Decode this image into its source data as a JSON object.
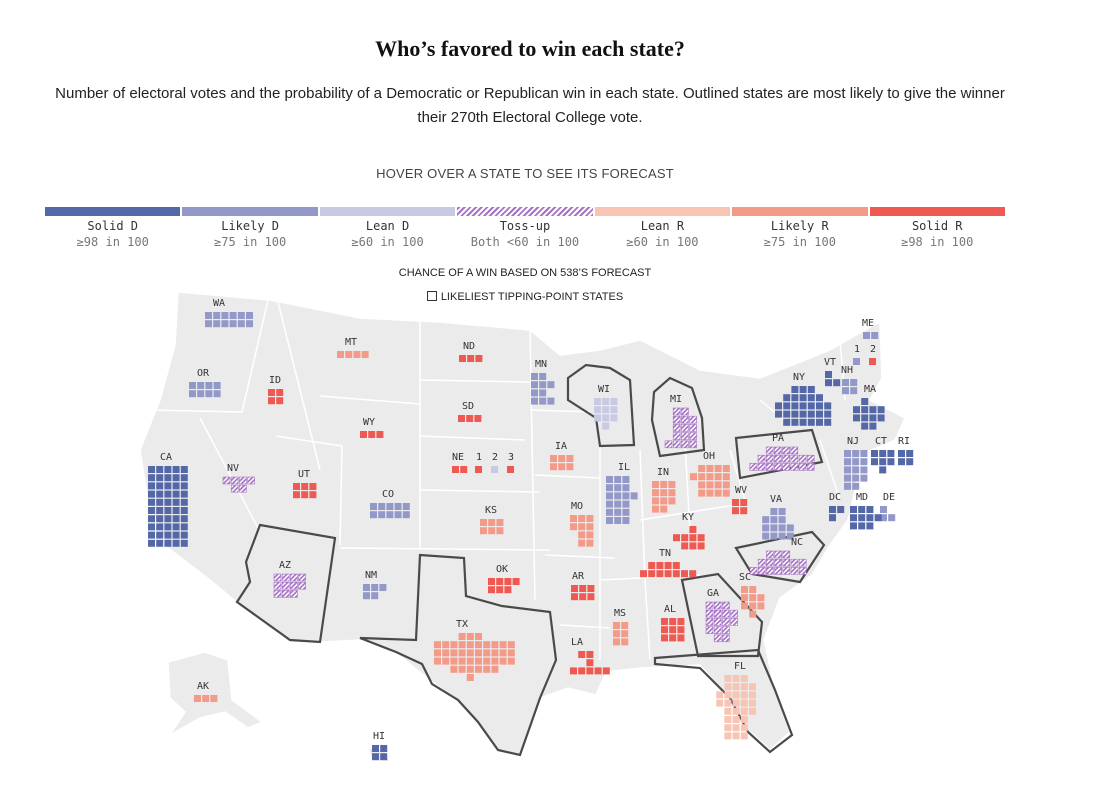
{
  "header": {
    "title": "Who’s favored to win each state?",
    "subtitle": "Number of electoral votes and the probability of a Democratic or Republican win in each state. Outlined states are most likely to give the winner their 270th Electoral College vote."
  },
  "hover_hint": "HOVER OVER A STATE TO SEE ITS FORECAST",
  "legend": [
    {
      "key": "sd",
      "name": "Solid D",
      "range": "≥98 in 100",
      "color": "#5468a8"
    },
    {
      "key": "ld",
      "name": "Likely D",
      "range": "≥75 in 100",
      "color": "#9298c8"
    },
    {
      "key": "nd",
      "name": "Lean D",
      "range": "≥60 in 100",
      "color": "#c8c9e2"
    },
    {
      "key": "tu",
      "name": "Toss-up",
      "range": "Both <60 in 100",
      "color": "#a774c4"
    },
    {
      "key": "nr",
      "name": "Lean R",
      "range": "≥60 in 100",
      "color": "#f8c4b4"
    },
    {
      "key": "lr",
      "name": "Likely R",
      "range": "≥75 in 100",
      "color": "#f39a89"
    },
    {
      "key": "sr",
      "name": "Solid R",
      "range": "≥98 in 100",
      "color": "#ee5a52"
    }
  ],
  "chance_note": "CHANCE OF A WIN BASED ON 538’S FORECAST",
  "tipping_note": "LIKELIEST TIPPING-POINT STATES",
  "map": {
    "states": [
      {
        "abbr": "WA",
        "ev": 12,
        "rating": "ld"
      },
      {
        "abbr": "OR",
        "ev": 8,
        "rating": "ld"
      },
      {
        "abbr": "CA",
        "ev": 54,
        "rating": "sd"
      },
      {
        "abbr": "NV",
        "ev": 6,
        "rating": "tu"
      },
      {
        "abbr": "ID",
        "ev": 4,
        "rating": "sr"
      },
      {
        "abbr": "MT",
        "ev": 4,
        "rating": "lr"
      },
      {
        "abbr": "WY",
        "ev": 3,
        "rating": "sr"
      },
      {
        "abbr": "UT",
        "ev": 6,
        "rating": "sr"
      },
      {
        "abbr": "CO",
        "ev": 10,
        "rating": "ld"
      },
      {
        "abbr": "AZ",
        "ev": 11,
        "rating": "tu",
        "tipping": true
      },
      {
        "abbr": "NM",
        "ev": 5,
        "rating": "ld"
      },
      {
        "abbr": "ND",
        "ev": 3,
        "rating": "sr"
      },
      {
        "abbr": "SD",
        "ev": 3,
        "rating": "sr"
      },
      {
        "abbr": "NE",
        "ev": 2,
        "rating": "sr"
      },
      {
        "abbr": "1",
        "ev": 1,
        "rating": "sr"
      },
      {
        "abbr": "2",
        "ev": 1,
        "rating": "nd"
      },
      {
        "abbr": "3",
        "ev": 1,
        "rating": "sr"
      },
      {
        "abbr": "KS",
        "ev": 6,
        "rating": "lr"
      },
      {
        "abbr": "OK",
        "ev": 7,
        "rating": "sr"
      },
      {
        "abbr": "TX",
        "ev": 40,
        "rating": "lr",
        "tipping": true
      },
      {
        "abbr": "MN",
        "ev": 10,
        "rating": "ld"
      },
      {
        "abbr": "IA",
        "ev": 6,
        "rating": "lr"
      },
      {
        "abbr": "MO",
        "ev": 10,
        "rating": "lr"
      },
      {
        "abbr": "AR",
        "ev": 6,
        "rating": "sr"
      },
      {
        "abbr": "LA",
        "ev": 8,
        "rating": "sr"
      },
      {
        "abbr": "WI",
        "ev": 10,
        "rating": "nd",
        "tipping": true
      },
      {
        "abbr": "IL",
        "ev": 19,
        "rating": "ld"
      },
      {
        "abbr": "MI",
        "ev": 15,
        "rating": "tu",
        "tipping": true
      },
      {
        "abbr": "IN",
        "ev": 11,
        "rating": "lr"
      },
      {
        "abbr": "OH",
        "ev": 17,
        "rating": "lr"
      },
      {
        "abbr": "KY",
        "ev": 8,
        "rating": "sr"
      },
      {
        "abbr": "TN",
        "ev": 11,
        "rating": "sr"
      },
      {
        "abbr": "MS",
        "ev": 6,
        "rating": "lr"
      },
      {
        "abbr": "AL",
        "ev": 9,
        "rating": "sr"
      },
      {
        "abbr": "GA",
        "ev": 16,
        "rating": "tu",
        "tipping": true
      },
      {
        "abbr": "FL",
        "ev": 30,
        "rating": "nr",
        "tipping": true
      },
      {
        "abbr": "SC",
        "ev": 9,
        "rating": "lr"
      },
      {
        "abbr": "NC",
        "ev": 16,
        "rating": "tu",
        "tipping": true
      },
      {
        "abbr": "VA",
        "ev": 13,
        "rating": "ld"
      },
      {
        "abbr": "WV",
        "ev": 4,
        "rating": "sr"
      },
      {
        "abbr": "PA",
        "ev": 19,
        "rating": "tu",
        "tipping": true
      },
      {
        "abbr": "NY",
        "ev": 28,
        "rating": "sd"
      },
      {
        "abbr": "VT",
        "ev": 3,
        "rating": "sd"
      },
      {
        "abbr": "NH",
        "ev": 4,
        "rating": "ld"
      },
      {
        "abbr": "ME",
        "ev": 2,
        "rating": "ld"
      },
      {
        "abbr": "1",
        "ev": 1,
        "rating": "ld"
      },
      {
        "abbr": "2",
        "ev": 1,
        "rating": "sr"
      },
      {
        "abbr": "MA",
        "ev": 11,
        "rating": "sd"
      },
      {
        "abbr": "CT",
        "ev": 7,
        "rating": "sd"
      },
      {
        "abbr": "RI",
        "ev": 4,
        "rating": "sd"
      },
      {
        "abbr": "NJ",
        "ev": 14,
        "rating": "ld"
      },
      {
        "abbr": "DE",
        "ev": 3,
        "rating": "ld"
      },
      {
        "abbr": "MD",
        "ev": 10,
        "rating": "sd"
      },
      {
        "abbr": "DC",
        "ev": 3,
        "rating": "sd"
      },
      {
        "abbr": "AK",
        "ev": 3,
        "rating": "lr"
      },
      {
        "abbr": "HI",
        "ev": 4,
        "rating": "sd"
      }
    ]
  }
}
